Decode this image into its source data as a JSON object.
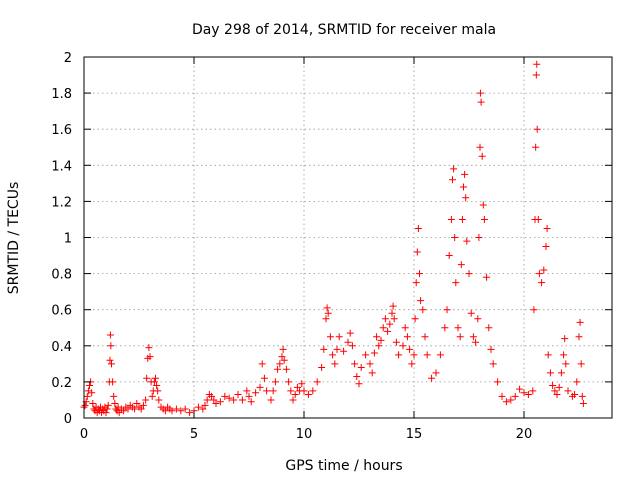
{
  "chart_data": {
    "type": "scatter",
    "title": "Day 298 of 2014, SRMTID for receiver mala",
    "xlabel": "GPS time / hours",
    "ylabel": "SRMTID / TECUs",
    "xlim": [
      0,
      24
    ],
    "ylim": [
      0,
      2
    ],
    "xticks": [
      0,
      5,
      10,
      15,
      20
    ],
    "yticks": [
      0,
      0.2,
      0.4,
      0.6,
      0.8,
      1,
      1.2,
      1.4,
      1.6,
      1.8,
      2
    ],
    "xtick_labels": [
      "0",
      "5",
      "10",
      "15",
      "20"
    ],
    "ytick_labels": [
      "0",
      "0.2",
      "0.4",
      "0.6",
      "0.8",
      "1",
      "1.2",
      "1.4",
      "1.6",
      "1.8",
      "2"
    ],
    "grid": true,
    "marker": "+",
    "color": "#ff0000",
    "series": [
      {
        "name": "SRMTID",
        "points": [
          [
            0.0,
            0.06
          ],
          [
            0.05,
            0.07
          ],
          [
            0.1,
            0.09
          ],
          [
            0.15,
            0.12
          ],
          [
            0.2,
            0.15
          ],
          [
            0.25,
            0.18
          ],
          [
            0.3,
            0.2
          ],
          [
            0.35,
            0.14
          ],
          [
            0.4,
            0.08
          ],
          [
            0.45,
            0.05
          ],
          [
            0.5,
            0.04
          ],
          [
            0.55,
            0.06
          ],
          [
            0.6,
            0.03
          ],
          [
            0.65,
            0.05
          ],
          [
            0.7,
            0.04
          ],
          [
            0.75,
            0.06
          ],
          [
            0.8,
            0.03
          ],
          [
            0.85,
            0.05
          ],
          [
            0.9,
            0.04
          ],
          [
            0.95,
            0.06
          ],
          [
            1.0,
            0.03
          ],
          [
            1.05,
            0.05
          ],
          [
            1.1,
            0.07
          ],
          [
            1.15,
            0.2
          ],
          [
            1.18,
            0.32
          ],
          [
            1.2,
            0.46
          ],
          [
            1.22,
            0.4
          ],
          [
            1.25,
            0.3
          ],
          [
            1.3,
            0.2
          ],
          [
            1.35,
            0.12
          ],
          [
            1.4,
            0.08
          ],
          [
            1.45,
            0.05
          ],
          [
            1.5,
            0.04
          ],
          [
            1.55,
            0.06
          ],
          [
            1.6,
            0.03
          ],
          [
            1.7,
            0.05
          ],
          [
            1.8,
            0.04
          ],
          [
            1.9,
            0.06
          ],
          [
            2.0,
            0.05
          ],
          [
            2.1,
            0.07
          ],
          [
            2.2,
            0.06
          ],
          [
            2.3,
            0.05
          ],
          [
            2.4,
            0.08
          ],
          [
            2.5,
            0.06
          ],
          [
            2.6,
            0.05
          ],
          [
            2.7,
            0.07
          ],
          [
            2.8,
            0.1
          ],
          [
            2.85,
            0.22
          ],
          [
            2.9,
            0.33
          ],
          [
            2.95,
            0.39
          ],
          [
            3.0,
            0.34
          ],
          [
            3.05,
            0.2
          ],
          [
            3.1,
            0.12
          ],
          [
            3.15,
            0.15
          ],
          [
            3.2,
            0.2
          ],
          [
            3.25,
            0.22
          ],
          [
            3.3,
            0.18
          ],
          [
            3.35,
            0.15
          ],
          [
            3.4,
            0.1
          ],
          [
            3.5,
            0.06
          ],
          [
            3.6,
            0.05
          ],
          [
            3.7,
            0.04
          ],
          [
            3.8,
            0.06
          ],
          [
            3.9,
            0.05
          ],
          [
            4.0,
            0.04
          ],
          [
            4.2,
            0.05
          ],
          [
            4.4,
            0.04
          ],
          [
            4.6,
            0.05
          ],
          [
            4.8,
            0.03
          ],
          [
            5.0,
            0.04
          ],
          [
            5.2,
            0.06
          ],
          [
            5.4,
            0.05
          ],
          [
            5.5,
            0.07
          ],
          [
            5.6,
            0.1
          ],
          [
            5.7,
            0.13
          ],
          [
            5.8,
            0.12
          ],
          [
            5.9,
            0.1
          ],
          [
            6.0,
            0.08
          ],
          [
            6.2,
            0.09
          ],
          [
            6.4,
            0.12
          ],
          [
            6.6,
            0.11
          ],
          [
            6.8,
            0.1
          ],
          [
            7.0,
            0.13
          ],
          [
            7.2,
            0.1
          ],
          [
            7.4,
            0.15
          ],
          [
            7.5,
            0.12
          ],
          [
            7.6,
            0.09
          ],
          [
            7.8,
            0.14
          ],
          [
            8.0,
            0.17
          ],
          [
            8.1,
            0.3
          ],
          [
            8.2,
            0.22
          ],
          [
            8.3,
            0.15
          ],
          [
            8.5,
            0.1
          ],
          [
            8.6,
            0.15
          ],
          [
            8.7,
            0.2
          ],
          [
            8.8,
            0.27
          ],
          [
            8.9,
            0.3
          ],
          [
            9.0,
            0.34
          ],
          [
            9.05,
            0.38
          ],
          [
            9.1,
            0.32
          ],
          [
            9.2,
            0.27
          ],
          [
            9.3,
            0.2
          ],
          [
            9.4,
            0.15
          ],
          [
            9.5,
            0.1
          ],
          [
            9.6,
            0.13
          ],
          [
            9.7,
            0.17
          ],
          [
            9.8,
            0.15
          ],
          [
            9.9,
            0.19
          ],
          [
            10.0,
            0.15
          ],
          [
            10.2,
            0.13
          ],
          [
            10.4,
            0.15
          ],
          [
            10.6,
            0.2
          ],
          [
            10.8,
            0.28
          ],
          [
            10.9,
            0.38
          ],
          [
            11.0,
            0.55
          ],
          [
            11.05,
            0.61
          ],
          [
            11.1,
            0.58
          ],
          [
            11.2,
            0.45
          ],
          [
            11.3,
            0.35
          ],
          [
            11.4,
            0.3
          ],
          [
            11.5,
            0.38
          ],
          [
            11.6,
            0.45
          ],
          [
            11.8,
            0.37
          ],
          [
            12.0,
            0.42
          ],
          [
            12.1,
            0.47
          ],
          [
            12.2,
            0.4
          ],
          [
            12.3,
            0.3
          ],
          [
            12.4,
            0.23
          ],
          [
            12.5,
            0.19
          ],
          [
            12.6,
            0.28
          ],
          [
            12.8,
            0.35
          ],
          [
            13.0,
            0.3
          ],
          [
            13.1,
            0.25
          ],
          [
            13.2,
            0.36
          ],
          [
            13.3,
            0.45
          ],
          [
            13.4,
            0.4
          ],
          [
            13.5,
            0.43
          ],
          [
            13.6,
            0.5
          ],
          [
            13.7,
            0.55
          ],
          [
            13.8,
            0.48
          ],
          [
            13.9,
            0.52
          ],
          [
            14.0,
            0.58
          ],
          [
            14.05,
            0.62
          ],
          [
            14.1,
            0.55
          ],
          [
            14.2,
            0.42
          ],
          [
            14.3,
            0.35
          ],
          [
            14.5,
            0.4
          ],
          [
            14.6,
            0.5
          ],
          [
            14.7,
            0.45
          ],
          [
            14.8,
            0.38
          ],
          [
            14.9,
            0.3
          ],
          [
            15.0,
            0.35
          ],
          [
            15.05,
            0.55
          ],
          [
            15.1,
            0.75
          ],
          [
            15.15,
            0.92
          ],
          [
            15.2,
            1.05
          ],
          [
            15.25,
            0.8
          ],
          [
            15.3,
            0.65
          ],
          [
            15.4,
            0.6
          ],
          [
            15.5,
            0.45
          ],
          [
            15.6,
            0.35
          ],
          [
            15.8,
            0.22
          ],
          [
            16.0,
            0.25
          ],
          [
            16.2,
            0.35
          ],
          [
            16.4,
            0.5
          ],
          [
            16.5,
            0.6
          ],
          [
            16.6,
            0.9
          ],
          [
            16.7,
            1.1
          ],
          [
            16.75,
            1.32
          ],
          [
            16.8,
            1.38
          ],
          [
            16.85,
            1.0
          ],
          [
            16.9,
            0.75
          ],
          [
            17.0,
            0.5
          ],
          [
            17.1,
            0.45
          ],
          [
            17.15,
            0.85
          ],
          [
            17.2,
            1.1
          ],
          [
            17.25,
            1.28
          ],
          [
            17.3,
            1.35
          ],
          [
            17.35,
            1.22
          ],
          [
            17.4,
            0.98
          ],
          [
            17.5,
            0.8
          ],
          [
            17.6,
            0.58
          ],
          [
            17.7,
            0.45
          ],
          [
            17.8,
            0.42
          ],
          [
            17.9,
            0.55
          ],
          [
            17.95,
            1.0
          ],
          [
            18.0,
            1.5
          ],
          [
            18.02,
            1.8
          ],
          [
            18.05,
            1.75
          ],
          [
            18.1,
            1.45
          ],
          [
            18.15,
            1.18
          ],
          [
            18.2,
            1.1
          ],
          [
            18.3,
            0.78
          ],
          [
            18.4,
            0.5
          ],
          [
            18.5,
            0.38
          ],
          [
            18.6,
            0.3
          ],
          [
            18.8,
            0.2
          ],
          [
            19.0,
            0.12
          ],
          [
            19.2,
            0.09
          ],
          [
            19.4,
            0.1
          ],
          [
            19.6,
            0.12
          ],
          [
            19.8,
            0.16
          ],
          [
            20.0,
            0.14
          ],
          [
            20.2,
            0.13
          ],
          [
            20.4,
            0.15
          ],
          [
            20.45,
            0.6
          ],
          [
            20.5,
            1.1
          ],
          [
            20.53,
            1.5
          ],
          [
            20.56,
            1.9
          ],
          [
            20.58,
            1.96
          ],
          [
            20.6,
            1.6
          ],
          [
            20.65,
            1.1
          ],
          [
            20.7,
            0.8
          ],
          [
            20.8,
            0.75
          ],
          [
            20.9,
            0.82
          ],
          [
            21.0,
            0.95
          ],
          [
            21.05,
            1.05
          ],
          [
            21.1,
            0.35
          ],
          [
            21.2,
            0.25
          ],
          [
            21.3,
            0.18
          ],
          [
            21.4,
            0.15
          ],
          [
            21.5,
            0.13
          ],
          [
            21.6,
            0.17
          ],
          [
            21.7,
            0.25
          ],
          [
            21.8,
            0.35
          ],
          [
            21.85,
            0.44
          ],
          [
            21.9,
            0.3
          ],
          [
            22.0,
            0.15
          ],
          [
            22.2,
            0.12
          ],
          [
            22.3,
            0.13
          ],
          [
            22.4,
            0.2
          ],
          [
            22.5,
            0.45
          ],
          [
            22.55,
            0.53
          ],
          [
            22.6,
            0.3
          ],
          [
            22.65,
            0.12
          ],
          [
            22.7,
            0.08
          ]
        ]
      }
    ]
  }
}
